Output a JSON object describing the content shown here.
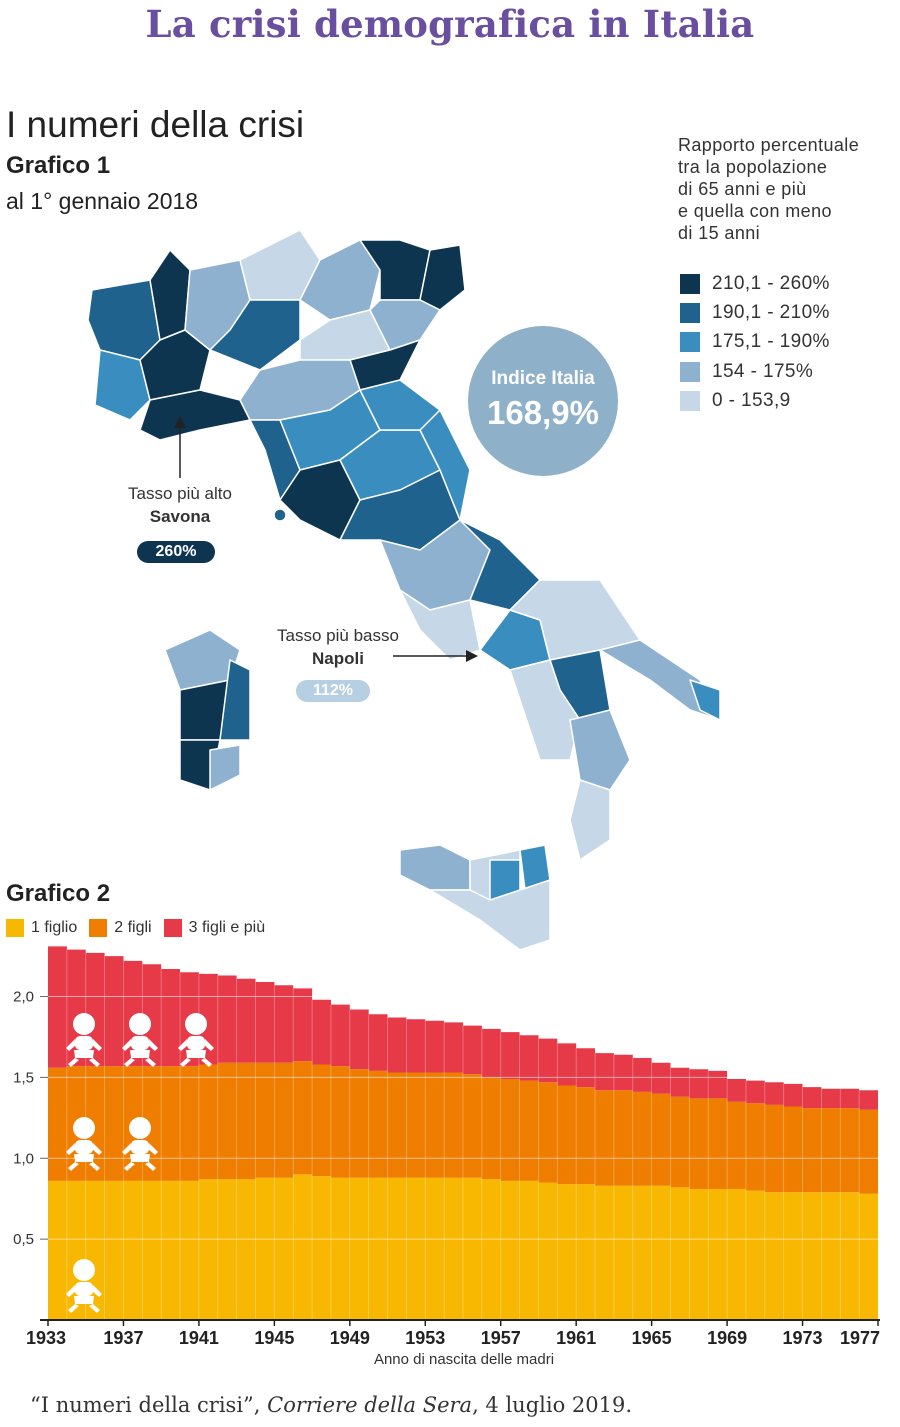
{
  "header": {
    "title": "La crisi demografica in Italia"
  },
  "section": {
    "title": "I numeri della crisi"
  },
  "grafico1": {
    "title": "Grafico 1",
    "subtitle": "al 1° gennaio 2018",
    "legend_title_lines": [
      "Rapporto percentuale",
      "tra la popolazione",
      "di 65 anni e più",
      "e quella con meno",
      "di 15 anni"
    ],
    "legend": [
      {
        "label": "210,1 - 260%",
        "color": "#0e3550"
      },
      {
        "label": "190,1 - 210%",
        "color": "#1f628e"
      },
      {
        "label": "175,1 - 190%",
        "color": "#3a8dbf"
      },
      {
        "label": "154 - 175%",
        "color": "#8eb1d0"
      },
      {
        "label": "0 - 153,9",
        "color": "#c6d8e7"
      }
    ],
    "index": {
      "label": "Indice Italia",
      "value": "168,9%"
    },
    "highest": {
      "label": "Tasso più alto",
      "place": "Savona",
      "value": "260%",
      "color": "#0e3550"
    },
    "lowest": {
      "label": "Tasso più basso",
      "place": "Napoli",
      "value": "112%",
      "color": "#b6cfe3"
    }
  },
  "grafico2": {
    "title": "Grafico 2",
    "legend": [
      {
        "label": "1 figlio",
        "color": "#f8b700"
      },
      {
        "label": "2 figli",
        "color": "#ef7d00"
      },
      {
        "label": "3 figli e più",
        "color": "#e63a48"
      }
    ]
  },
  "chart_data": {
    "type": "area",
    "stacked": true,
    "title": "",
    "xlabel": "Anno di nascita delle madri",
    "ylabel": "",
    "xlim": [
      1933,
      1977
    ],
    "ylim": [
      0,
      2.3
    ],
    "yticks": [
      "0,5",
      "1,0",
      "1,5",
      "2,0"
    ],
    "ytick_values": [
      0.5,
      1.0,
      1.5,
      2.0
    ],
    "xticks": [
      "1933",
      "1937",
      "1941",
      "1945",
      "1949",
      "1953",
      "1957",
      "1961",
      "1965",
      "1969",
      "1973",
      "1977"
    ],
    "xtick_values": [
      1933,
      1937,
      1941,
      1945,
      1949,
      1953,
      1957,
      1961,
      1965,
      1969,
      1973,
      1977
    ],
    "x": [
      1933,
      1934,
      1935,
      1936,
      1937,
      1938,
      1939,
      1940,
      1941,
      1942,
      1943,
      1944,
      1945,
      1946,
      1947,
      1948,
      1949,
      1950,
      1951,
      1952,
      1953,
      1954,
      1955,
      1956,
      1957,
      1958,
      1959,
      1960,
      1961,
      1962,
      1963,
      1964,
      1965,
      1966,
      1967,
      1968,
      1969,
      1970,
      1971,
      1972,
      1973,
      1974,
      1975,
      1976
    ],
    "series": [
      {
        "name": "1 figlio",
        "color": "#f8b700",
        "values": [
          0.86,
          0.86,
          0.86,
          0.86,
          0.86,
          0.86,
          0.86,
          0.86,
          0.87,
          0.87,
          0.87,
          0.88,
          0.88,
          0.9,
          0.89,
          0.88,
          0.88,
          0.88,
          0.88,
          0.88,
          0.88,
          0.88,
          0.88,
          0.87,
          0.86,
          0.86,
          0.85,
          0.84,
          0.84,
          0.83,
          0.83,
          0.83,
          0.83,
          0.82,
          0.81,
          0.81,
          0.81,
          0.8,
          0.79,
          0.79,
          0.79,
          0.79,
          0.79,
          0.78
        ]
      },
      {
        "name": "2 figli",
        "color": "#ef7d00",
        "values": [
          0.7,
          0.71,
          0.71,
          0.71,
          0.71,
          0.71,
          0.71,
          0.71,
          0.71,
          0.72,
          0.72,
          0.71,
          0.71,
          0.7,
          0.69,
          0.69,
          0.67,
          0.66,
          0.65,
          0.65,
          0.65,
          0.65,
          0.64,
          0.63,
          0.63,
          0.62,
          0.62,
          0.61,
          0.6,
          0.59,
          0.59,
          0.58,
          0.57,
          0.56,
          0.56,
          0.56,
          0.54,
          0.54,
          0.54,
          0.53,
          0.52,
          0.52,
          0.52,
          0.52
        ]
      },
      {
        "name": "3 figli e più",
        "color": "#e63a48",
        "values": [
          0.75,
          0.72,
          0.7,
          0.68,
          0.65,
          0.63,
          0.6,
          0.58,
          0.56,
          0.54,
          0.52,
          0.5,
          0.48,
          0.45,
          0.4,
          0.38,
          0.37,
          0.35,
          0.34,
          0.33,
          0.32,
          0.31,
          0.3,
          0.3,
          0.29,
          0.28,
          0.27,
          0.26,
          0.24,
          0.23,
          0.22,
          0.21,
          0.19,
          0.18,
          0.18,
          0.17,
          0.14,
          0.14,
          0.14,
          0.14,
          0.13,
          0.12,
          0.12,
          0.12
        ]
      }
    ]
  },
  "footer": {
    "quote": "“I numeri della crisi”, ",
    "source": "Corriere della Sera",
    "date": ", 4 luglio 2019."
  }
}
